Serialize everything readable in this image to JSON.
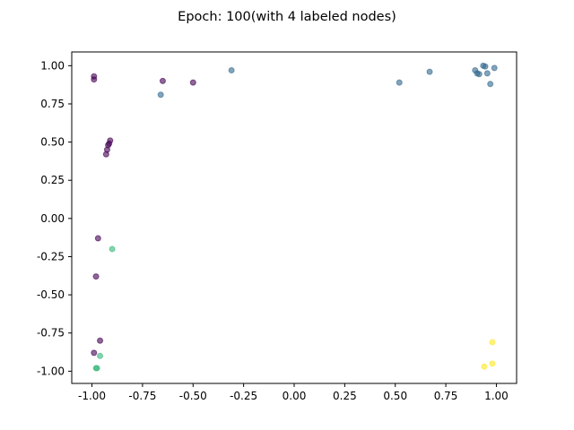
{
  "chart_data": {
    "type": "scatter",
    "title": "Epoch: 100(with 4 labeled nodes)",
    "xlabel": "",
    "ylabel": "",
    "xlim": [
      -1.1,
      1.1
    ],
    "ylim": [
      -1.08,
      1.09
    ],
    "xticks": [
      "-1.00",
      "-0.75",
      "-0.50",
      "-0.25",
      "0.00",
      "0.25",
      "0.50",
      "0.75",
      "1.00"
    ],
    "yticks": [
      "-1.00",
      "-0.75",
      "-0.50",
      "-0.25",
      "0.00",
      "0.25",
      "0.50",
      "0.75",
      "1.00"
    ],
    "grid": false,
    "marker_alpha": 0.6,
    "series": [
      {
        "color": "#440154",
        "points": [
          [
            -0.99,
            0.93
          ],
          [
            -0.99,
            0.91
          ],
          [
            -0.65,
            0.9
          ],
          [
            -0.5,
            0.89
          ],
          [
            -0.91,
            0.51
          ],
          [
            -0.915,
            0.49
          ],
          [
            -0.92,
            0.48
          ],
          [
            -0.925,
            0.45
          ],
          [
            -0.93,
            0.42
          ],
          [
            -0.97,
            -0.13
          ],
          [
            -0.98,
            -0.38
          ],
          [
            -0.96,
            -0.8
          ],
          [
            -0.99,
            -0.88
          ]
        ]
      },
      {
        "color": "#31688e",
        "points": [
          [
            -0.66,
            0.81
          ],
          [
            -0.31,
            0.97
          ],
          [
            0.52,
            0.89
          ],
          [
            0.67,
            0.96
          ],
          [
            0.895,
            0.97
          ],
          [
            0.905,
            0.95
          ],
          [
            0.915,
            0.945
          ],
          [
            0.935,
            1.0
          ],
          [
            0.945,
            0.995
          ],
          [
            0.955,
            0.95
          ],
          [
            0.97,
            0.88
          ],
          [
            0.99,
            0.985
          ]
        ]
      },
      {
        "color": "#35b779",
        "points": [
          [
            -0.9,
            -0.2
          ],
          [
            -0.96,
            -0.9
          ],
          [
            -0.975,
            -0.98
          ],
          [
            -0.98,
            -0.98
          ]
        ]
      },
      {
        "color": "#fde725",
        "points": [
          [
            0.98,
            -0.81
          ],
          [
            0.98,
            -0.95
          ],
          [
            0.94,
            -0.97
          ]
        ]
      }
    ]
  }
}
